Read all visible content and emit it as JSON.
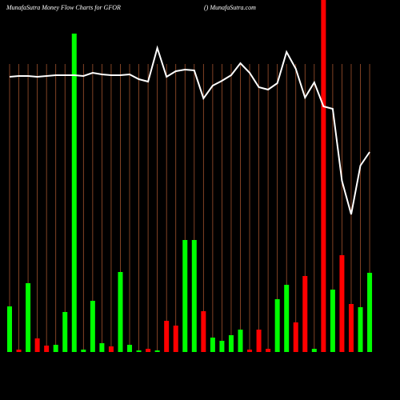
{
  "chart_data": {
    "type": "bar",
    "title": "MunafaSutra  Money Flow  Charts for GFOR",
    "subtitle": "() MunafaSutra.com",
    "categories": [
      null,
      null,
      null,
      null,
      null,
      null,
      null,
      null,
      null,
      null,
      null,
      null,
      null,
      null,
      null,
      null,
      null,
      null,
      null,
      null,
      null,
      null,
      null,
      null,
      null,
      null,
      null,
      null,
      null,
      null,
      null,
      null,
      null,
      null,
      null,
      null,
      null,
      null,
      null,
      null
    ],
    "values": [
      57,
      3,
      86,
      17,
      8,
      9,
      50,
      398,
      3,
      64,
      11,
      7,
      100,
      9,
      2,
      4,
      2,
      39,
      33,
      140,
      140,
      51,
      18,
      14,
      21,
      28,
      3,
      28,
      4,
      66,
      84,
      37,
      95,
      4,
      440,
      78,
      121,
      60,
      56,
      99
    ],
    "colors": [
      "#00ff00",
      "#ff0000",
      "#00ff00",
      "#ff0000",
      "#ff0000",
      "#00ff00",
      "#00ff00",
      "#00ff00",
      "#00ff00",
      "#00ff00",
      "#00ff00",
      "#ff0000",
      "#00ff00",
      "#00ff00",
      "#00ff00",
      "#ff0000",
      "#00ff00",
      "#ff0000",
      "#ff0000",
      "#00ff00",
      "#00ff00",
      "#ff0000",
      "#00ff00",
      "#00ff00",
      "#00ff00",
      "#00ff00",
      "#ff0000",
      "#ff0000",
      "#ff0000",
      "#00ff00",
      "#00ff00",
      "#ff0000",
      "#ff0000",
      "#00ff00",
      "#ff0000",
      "#00ff00",
      "#ff0000",
      "#ff0000",
      "#00ff00",
      "#00ff00"
    ],
    "line_values": [
      344,
      345,
      345,
      344,
      345,
      346,
      346,
      346,
      345,
      349,
      347,
      346,
      346,
      347,
      341,
      338,
      380,
      344,
      351,
      353,
      352,
      317,
      333,
      339,
      346,
      361,
      349,
      331,
      328,
      336,
      375,
      354,
      318,
      337,
      307,
      304,
      214,
      172,
      233,
      250
    ],
    "line_color": "#ffffff",
    "grid_color": "#a0522d",
    "grid": true,
    "ylim": [
      0,
      440
    ]
  }
}
